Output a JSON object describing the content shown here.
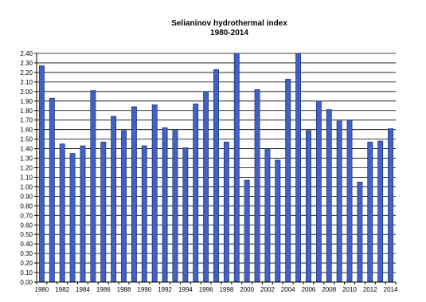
{
  "chart_data": {
    "type": "bar",
    "title": "Selianinov hydrothermal index",
    "subtitle": "1980-2014",
    "xlabel": "",
    "ylabel": "",
    "ylim": [
      0,
      2.4
    ],
    "ytick_step": 0.1,
    "grid": true,
    "legend": "none",
    "bar_color": "#3f62c4",
    "bar_edge_color": "#1f2f6b",
    "categories": [
      "1980",
      "1981",
      "1982",
      "1983",
      "1984",
      "1985",
      "1986",
      "1987",
      "1988",
      "1989",
      "1990",
      "1991",
      "1992",
      "1993",
      "1994",
      "1995",
      "1996",
      "1997",
      "1998",
      "1999",
      "2000",
      "2001",
      "2002",
      "2003",
      "2004",
      "2005",
      "2006",
      "2007",
      "2008",
      "2009",
      "2010",
      "2011",
      "2012",
      "2013",
      "2014"
    ],
    "x_tick_labels": [
      "1980",
      "1982",
      "1984",
      "1986",
      "1988",
      "1990",
      "1992",
      "1994",
      "1996",
      "1998",
      "2000",
      "2002",
      "2004",
      "2006",
      "2008",
      "2010",
      "2012",
      "2014"
    ],
    "y_tick_labels": [
      "0.00",
      "0.10",
      "0.20",
      "0.30",
      "0.40",
      "0.50",
      "0.60",
      "0.70",
      "0.80",
      "0.90",
      "1.00",
      "1.10",
      "1.20",
      "1.30",
      "1.40",
      "1.50",
      "1.60",
      "1.70",
      "1.80",
      "1.90",
      "2.00",
      "2.10",
      "2.20",
      "2.30",
      "2.40"
    ],
    "values": [
      2.27,
      1.93,
      1.45,
      1.35,
      1.43,
      2.01,
      1.47,
      1.74,
      1.59,
      1.84,
      1.43,
      1.86,
      1.62,
      1.6,
      1.41,
      1.87,
      2.0,
      2.23,
      1.47,
      2.4,
      1.07,
      2.02,
      1.4,
      1.28,
      2.13,
      2.4,
      1.59,
      1.9,
      1.81,
      1.69,
      1.7,
      1.05,
      1.47,
      1.48,
      1.61
    ]
  }
}
